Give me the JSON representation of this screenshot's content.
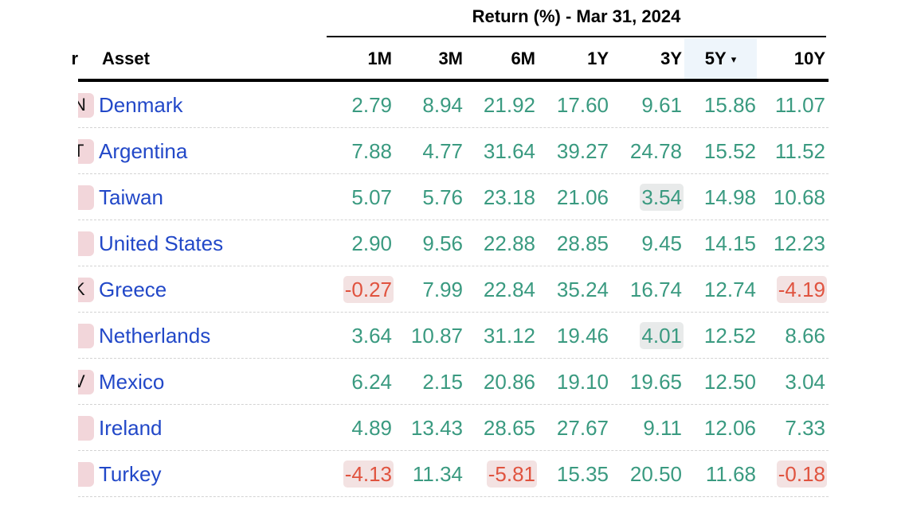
{
  "table": {
    "group_title": "Return (%) - Mar 31, 2024",
    "left_clip_header": "r",
    "asset_header": "Asset",
    "columns": [
      {
        "key": "1M",
        "label": "1M"
      },
      {
        "key": "3M",
        "label": "3M"
      },
      {
        "key": "6M",
        "label": "6M"
      },
      {
        "key": "1Y",
        "label": "1Y"
      },
      {
        "key": "3Y",
        "label": "3Y"
      },
      {
        "key": "5Y",
        "label": "5Y",
        "sorted": true,
        "sort_icon": "sort-desc-icon",
        "sort_glyph": "▾"
      },
      {
        "key": "10Y",
        "label": "10Y"
      }
    ],
    "rows": [
      {
        "flag_glyph": "N",
        "asset": "Denmark",
        "values": [
          "2.79",
          "8.94",
          "21.92",
          "17.60",
          "9.61",
          "15.86",
          "11.07"
        ]
      },
      {
        "flag_glyph": "T",
        "asset": "Argentina",
        "values": [
          "7.88",
          "4.77",
          "31.64",
          "39.27",
          "24.78",
          "15.52",
          "11.52"
        ]
      },
      {
        "flag_glyph": "",
        "asset": "Taiwan",
        "values": [
          "5.07",
          "5.76",
          "23.18",
          "21.06",
          "3.54",
          "14.98",
          "10.68"
        ],
        "highlight": [
          4
        ]
      },
      {
        "flag_glyph": "",
        "asset": "United States",
        "values": [
          "2.90",
          "9.56",
          "22.88",
          "28.85",
          "9.45",
          "14.15",
          "12.23"
        ]
      },
      {
        "flag_glyph": "K",
        "asset": "Greece",
        "values": [
          "-0.27",
          "7.99",
          "22.84",
          "35.24",
          "16.74",
          "12.74",
          "-4.19"
        ]
      },
      {
        "flag_glyph": "",
        "asset": "Netherlands",
        "values": [
          "3.64",
          "10.87",
          "31.12",
          "19.46",
          "4.01",
          "12.52",
          "8.66"
        ],
        "highlight": [
          4
        ]
      },
      {
        "flag_glyph": "V",
        "asset": "Mexico",
        "values": [
          "6.24",
          "2.15",
          "20.86",
          "19.10",
          "19.65",
          "12.50",
          "3.04"
        ]
      },
      {
        "flag_glyph": "",
        "asset": "Ireland",
        "values": [
          "4.89",
          "13.43",
          "28.65",
          "27.67",
          "9.11",
          "12.06",
          "7.33"
        ]
      },
      {
        "flag_glyph": "",
        "asset": "Turkey",
        "values": [
          "-4.13",
          "11.34",
          "-5.81",
          "15.35",
          "20.50",
          "11.68",
          "-0.18"
        ]
      }
    ],
    "colors": {
      "positive": "#3a9a80",
      "negative": "#e0533f",
      "link": "#2248c8",
      "sorted_header_bg": "#eef5fb"
    }
  }
}
